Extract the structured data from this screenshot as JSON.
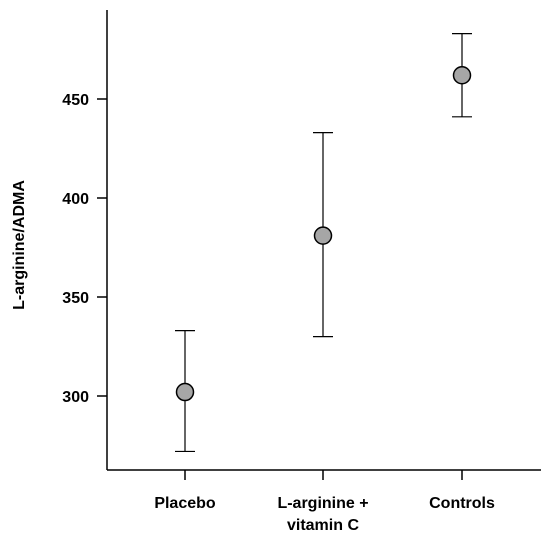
{
  "chart_data": {
    "type": "scatter",
    "title": "",
    "ylabel": "L-arginine/ADMA",
    "xlabel": "",
    "categories": [
      [
        "Placebo"
      ],
      [
        "L-arginine +",
        "vitamin C"
      ],
      [
        "Controls"
      ]
    ],
    "points": [
      {
        "mean": 302,
        "lower": 272,
        "upper": 333
      },
      {
        "mean": 381,
        "lower": 330,
        "upper": 433
      },
      {
        "mean": 462,
        "lower": 441,
        "upper": 483
      }
    ],
    "yticks": [
      300,
      350,
      400,
      450
    ],
    "ylim": [
      263,
      497
    ],
    "grid": false,
    "legend": "none",
    "marker_color": "#a6a6a6"
  }
}
